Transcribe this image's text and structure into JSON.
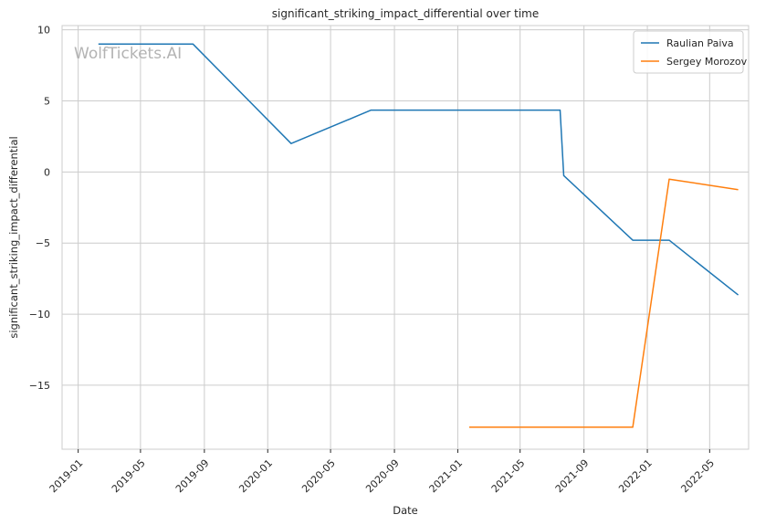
{
  "chart_data": {
    "type": "line",
    "title": "significant_striking_impact_differential over time",
    "xlabel": "Date",
    "ylabel": "significant_striking_impact_differential",
    "watermark": "WolfTickets.AI",
    "xlim": [
      "2018-12-01",
      "2022-07-15"
    ],
    "ylim": [
      -19.5,
      10.3
    ],
    "x_ticks": [
      "2019-01-01",
      "2019-05-01",
      "2019-09-01",
      "2020-01-01",
      "2020-05-01",
      "2020-09-01",
      "2021-01-01",
      "2021-05-01",
      "2021-09-01",
      "2022-01-01",
      "2022-05-01"
    ],
    "x_tick_labels": [
      "2019-01",
      "2019-05",
      "2019-09",
      "2020-01",
      "2020-05",
      "2020-09",
      "2021-01",
      "2021-05",
      "2021-09",
      "2022-01",
      "2022-05"
    ],
    "y_ticks": [
      10,
      5,
      0,
      -5,
      -10,
      -15
    ],
    "y_tick_labels": [
      "10",
      "5",
      "0",
      "−5",
      "−10",
      "−15"
    ],
    "grid": true,
    "legend_position": "top-right",
    "series": [
      {
        "name": "Raulian Paiva",
        "color": "#1f77b4",
        "points": [
          {
            "x": "2019-02-09",
            "y": 9.0
          },
          {
            "x": "2019-08-10",
            "y": 9.0
          },
          {
            "x": "2020-02-15",
            "y": 2.0
          },
          {
            "x": "2020-07-18",
            "y": 4.35
          },
          {
            "x": "2021-07-17",
            "y": 4.35
          },
          {
            "x": "2021-07-24",
            "y": -0.25
          },
          {
            "x": "2021-12-04",
            "y": -4.8
          },
          {
            "x": "2022-02-12",
            "y": -4.8
          },
          {
            "x": "2022-06-25",
            "y": -8.65
          }
        ]
      },
      {
        "name": "Sergey Morozov",
        "color": "#ff7f0e",
        "points": [
          {
            "x": "2021-01-23",
            "y": -17.95
          },
          {
            "x": "2021-12-04",
            "y": -17.95
          },
          {
            "x": "2022-02-12",
            "y": -0.5
          },
          {
            "x": "2022-06-25",
            "y": -1.25
          }
        ]
      }
    ]
  }
}
